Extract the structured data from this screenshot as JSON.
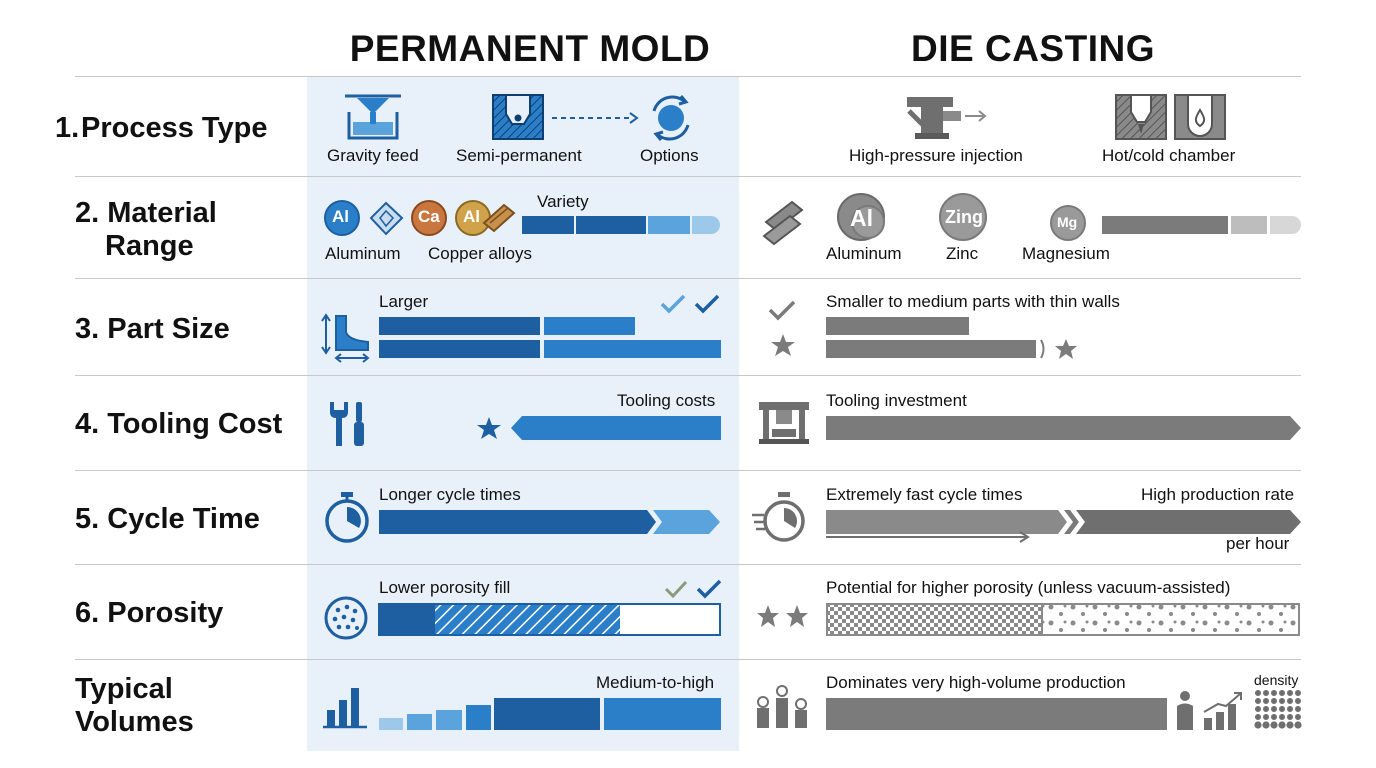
{
  "columns": {
    "left": "PERMANENT MOLD",
    "right": "DIE CASTING"
  },
  "rows": [
    {
      "num": "1.",
      "label": "Process Type"
    },
    {
      "num": "2.",
      "label": "Material",
      "label2": "Range"
    },
    {
      "num": "3.",
      "label": "Part Size"
    },
    {
      "num": "4.",
      "label": "Tooling Cost"
    },
    {
      "num": "5.",
      "label": "Cycle Time"
    },
    {
      "num": "6.",
      "label": "Porosity"
    },
    {
      "num": "",
      "label": "Typical",
      "label2": "Volumes"
    }
  ],
  "process": {
    "pm": [
      "Gravity feed",
      "Semi-permanent",
      "Options"
    ],
    "dc": [
      "High-pressure injection",
      "Hot/cold chamber"
    ]
  },
  "material": {
    "pm_badges": [
      "Al",
      "Ca",
      "Al"
    ],
    "pm_labels": [
      "Aluminum",
      "Copper alloys"
    ],
    "pm_variety": "Variety",
    "dc_badges": [
      "Al",
      "Zing",
      "Mg"
    ],
    "dc_labels": [
      "Aluminum",
      "Zinc",
      "Magnesium"
    ]
  },
  "size": {
    "pm": "Larger",
    "dc": "Smaller to medium parts with thin walls"
  },
  "tooling": {
    "pm": "Tooling costs",
    "dc": "Tooling investment"
  },
  "cycle": {
    "pm": "Longer cycle times",
    "dc_left": "Extremely fast cycle times",
    "dc_right": "High production rate",
    "dc_sub": "per hour"
  },
  "porosity": {
    "pm": "Lower porosity fill",
    "dc": "Potential for higher porosity (unless vacuum-assisted)"
  },
  "volumes": {
    "pm": "Medium-to-high",
    "dc": "Dominates very high-volume production",
    "dc_density": "density"
  },
  "colors": {
    "accent_blue": "#1d5fa0",
    "light_blue": "#5ba3dc",
    "band": "#e8f1fa",
    "gray": "#7b7b7b"
  }
}
